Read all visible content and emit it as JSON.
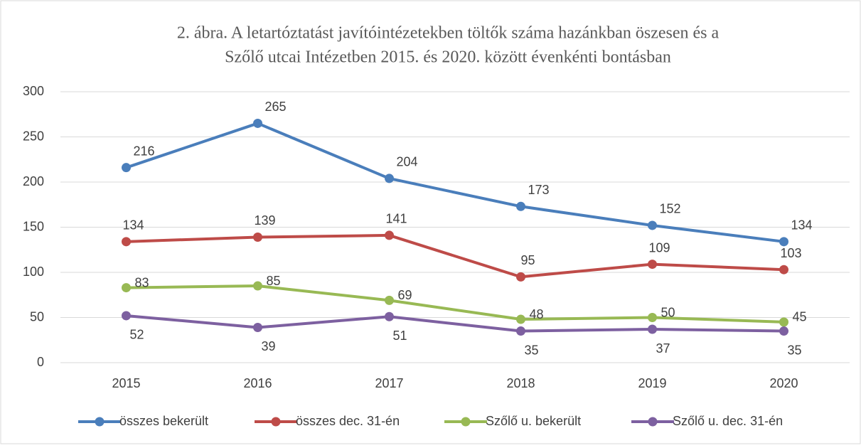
{
  "chart_data": {
    "type": "line",
    "title": [
      "2. ábra. A letartóztatást javítóintézetekben töltők száma hazánkban öszesen és a",
      "Szőlő utcai Intézetben 2015. és 2020. között évenkénti bontásban"
    ],
    "categories": [
      "2015",
      "2016",
      "2017",
      "2018",
      "2019",
      "2020"
    ],
    "series": [
      {
        "name": "összes bekerült",
        "color": "#4a7ebb",
        "values": [
          216,
          265,
          204,
          173,
          152,
          134
        ]
      },
      {
        "name": "összes dec. 31-én",
        "color": "#be4b48",
        "values": [
          134,
          139,
          141,
          95,
          109,
          103
        ]
      },
      {
        "name": "Szőlő u. bekerült",
        "color": "#98b954",
        "values": [
          83,
          85,
          69,
          48,
          50,
          45
        ]
      },
      {
        "name": "Szőlő u. dec. 31-én",
        "color": "#7d60a0",
        "values": [
          52,
          39,
          51,
          35,
          37,
          35
        ]
      }
    ],
    "ylim": [
      0,
      300
    ],
    "yticks": [
      0,
      50,
      100,
      150,
      200,
      250,
      300
    ],
    "grid": true,
    "legend": "bottom"
  }
}
